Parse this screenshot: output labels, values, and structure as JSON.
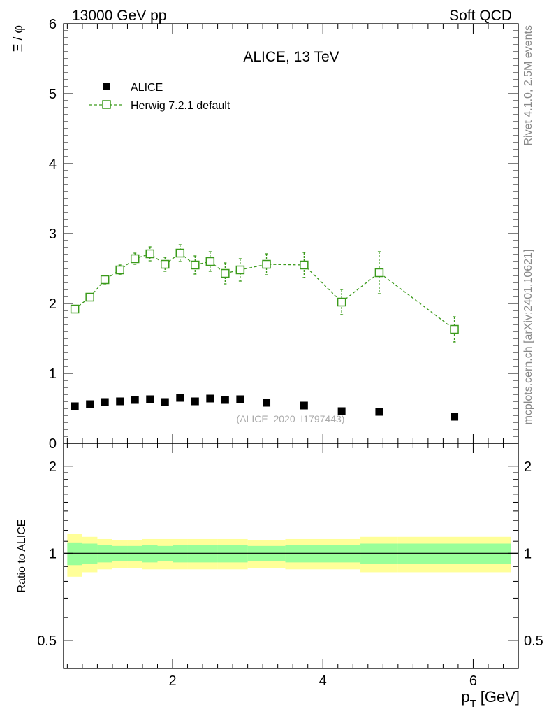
{
  "header": {
    "left": "13000 GeV pp",
    "right": "Soft QCD"
  },
  "side": {
    "rivet": "Rivet 4.1.0,  2.5M events",
    "mcplots": "mcplots.cern.ch [arXiv:2401.10621]"
  },
  "colors": {
    "data": "#000000",
    "mc": "#3a9a1a",
    "band_inner": "#99ff99",
    "band_outer": "#ffff99"
  },
  "chart_data": [
    {
      "type": "scatter",
      "title": "ALICE, 13 TeV",
      "ylabel": "Ξ / φ",
      "xlim": [
        0.55,
        6.6
      ],
      "ylim": [
        0,
        6
      ],
      "yticks": [
        "0",
        "1",
        "2",
        "3",
        "4",
        "5",
        "6"
      ],
      "watermark": "(ALICE_2020_I1797443)",
      "legend": {
        "position": "top-left",
        "entries": [
          "ALICE",
          "Herwig 7.2.1 default"
        ]
      },
      "series": [
        {
          "name": "ALICE",
          "x": [
            0.7,
            0.9,
            1.1,
            1.3,
            1.5,
            1.7,
            1.9,
            2.1,
            2.3,
            2.5,
            2.7,
            2.9,
            3.25,
            3.75,
            4.25,
            4.75,
            5.75
          ],
          "y": [
            0.53,
            0.56,
            0.59,
            0.6,
            0.62,
            0.63,
            0.59,
            0.65,
            0.6,
            0.64,
            0.62,
            0.63,
            0.58,
            0.54,
            0.46,
            0.45,
            0.38
          ]
        },
        {
          "name": "Herwig 7.2.1 default",
          "x": [
            0.7,
            0.9,
            1.1,
            1.3,
            1.5,
            1.7,
            1.9,
            2.1,
            2.3,
            2.5,
            2.7,
            2.9,
            3.25,
            3.75,
            4.25,
            4.75,
            5.75
          ],
          "y": [
            1.92,
            2.09,
            2.34,
            2.48,
            2.64,
            2.71,
            2.56,
            2.72,
            2.55,
            2.6,
            2.43,
            2.48,
            2.56,
            2.55,
            2.02,
            2.44,
            1.63
          ],
          "yerr": [
            0.04,
            0.05,
            0.06,
            0.07,
            0.08,
            0.1,
            0.1,
            0.12,
            0.13,
            0.14,
            0.15,
            0.16,
            0.15,
            0.18,
            0.18,
            0.3,
            0.18
          ]
        }
      ]
    },
    {
      "type": "band",
      "ylabel": "Ratio to ALICE",
      "xlabel": "p_T [GeV]",
      "xlabel_main": "p",
      "xlabel_sub": "T",
      "xlabel_unit": "[GeV]",
      "xlim": [
        0.55,
        6.6
      ],
      "ylim": [
        0.4,
        2.4
      ],
      "yticks": [
        "0.5",
        "1",
        "2"
      ],
      "xticks": [
        "2",
        "4",
        "6"
      ],
      "bins": [
        {
          "lo": 0.6,
          "hi": 0.8,
          "inner": 0.09,
          "outer": 0.17
        },
        {
          "lo": 0.8,
          "hi": 1.0,
          "inner": 0.08,
          "outer": 0.14
        },
        {
          "lo": 1.0,
          "hi": 1.2,
          "inner": 0.07,
          "outer": 0.12
        },
        {
          "lo": 1.2,
          "hi": 1.4,
          "inner": 0.06,
          "outer": 0.11
        },
        {
          "lo": 1.4,
          "hi": 1.6,
          "inner": 0.06,
          "outer": 0.11
        },
        {
          "lo": 1.6,
          "hi": 1.8,
          "inner": 0.07,
          "outer": 0.12
        },
        {
          "lo": 1.8,
          "hi": 2.0,
          "inner": 0.06,
          "outer": 0.12
        },
        {
          "lo": 2.0,
          "hi": 2.2,
          "inner": 0.07,
          "outer": 0.12
        },
        {
          "lo": 2.2,
          "hi": 2.4,
          "inner": 0.07,
          "outer": 0.12
        },
        {
          "lo": 2.4,
          "hi": 2.6,
          "inner": 0.07,
          "outer": 0.12
        },
        {
          "lo": 2.6,
          "hi": 2.8,
          "inner": 0.07,
          "outer": 0.12
        },
        {
          "lo": 2.8,
          "hi": 3.0,
          "inner": 0.07,
          "outer": 0.12
        },
        {
          "lo": 3.0,
          "hi": 3.5,
          "inner": 0.06,
          "outer": 0.11
        },
        {
          "lo": 3.5,
          "hi": 4.0,
          "inner": 0.07,
          "outer": 0.12
        },
        {
          "lo": 4.0,
          "hi": 4.5,
          "inner": 0.07,
          "outer": 0.12
        },
        {
          "lo": 4.5,
          "hi": 5.0,
          "inner": 0.08,
          "outer": 0.14
        },
        {
          "lo": 5.0,
          "hi": 6.5,
          "inner": 0.08,
          "outer": 0.14
        }
      ]
    }
  ]
}
